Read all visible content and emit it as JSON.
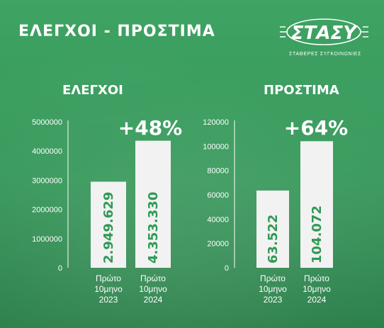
{
  "header": {
    "title": "ΕΛΕΓΧΟΙ - ΠΡΟΣΤΙΜΑ",
    "logo_text": "ΣΤΑΣΥ",
    "logo_tagline": "ΣΤΑΘΕΡΕΣ ΣΥΓΚΟΙΝΩΝΙΕΣ"
  },
  "colors": {
    "background": "#3a9e5e",
    "bar_fill": "#f2f2f2",
    "value_text": "#2f9a55",
    "text": "#ffffff"
  },
  "chart_data": [
    {
      "type": "bar",
      "title": "ΕΛΕΓΧΟΙ",
      "categories": [
        [
          "Πρώτο",
          "10μηνο",
          "2023"
        ],
        [
          "Πρώτο",
          "10μηνο",
          "2024"
        ]
      ],
      "values": [
        2949629,
        4353330
      ],
      "value_labels": [
        "2.949.629",
        "4.353.330"
      ],
      "yticks": [
        "0",
        "1000000",
        "2000000",
        "3000000",
        "4000000",
        "5000000"
      ],
      "ylim": [
        0,
        5000000
      ],
      "annotation": "+48%",
      "grid": false
    },
    {
      "type": "bar",
      "title": "ΠΡΟΣΤΙΜΑ",
      "categories": [
        [
          "Πρώτο",
          "10μηνο",
          "2023"
        ],
        [
          "Πρώτο",
          "10μηνο",
          "2024"
        ]
      ],
      "values": [
        63522,
        104072
      ],
      "value_labels": [
        "63.522",
        "104.072"
      ],
      "yticks": [
        "0",
        "20000",
        "40000",
        "60000",
        "80000",
        "100000",
        "120000"
      ],
      "ylim": [
        0,
        120000
      ],
      "annotation": "+64%",
      "grid": false
    }
  ]
}
